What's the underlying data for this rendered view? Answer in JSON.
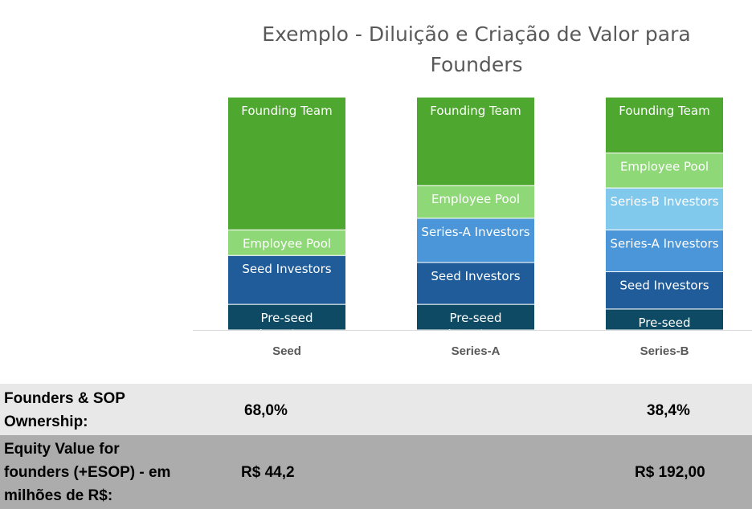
{
  "chart_data": {
    "type": "bar",
    "stacked": true,
    "percent_stacked": true,
    "title": "Exemplo - Diluição e Criação de Valor para Founders",
    "title_lines": [
      "Exemplo - Diluição e Criação de Valor para",
      "Founders"
    ],
    "categories": [
      "Seed",
      "Series-A",
      "Series-B"
    ],
    "series": [
      {
        "name": "Pre-seed Investors",
        "values": [
          11,
          11,
          9
        ],
        "color": "#0e4a63"
      },
      {
        "name": "Seed Investors",
        "values": [
          21,
          18,
          16
        ],
        "color": "#1f5c99"
      },
      {
        "name": "Series-A Investors",
        "values": [
          0,
          19,
          18
        ],
        "color": "#4b96d8"
      },
      {
        "name": "Series-B Investors",
        "values": [
          0,
          0,
          18
        ],
        "color": "#80c8ec"
      },
      {
        "name": "Employee Pool",
        "values": [
          11,
          14,
          15
        ],
        "color": "#8fd878"
      },
      {
        "name": "Founding Team",
        "values": [
          57,
          38,
          24
        ],
        "color": "#4ea72e"
      }
    ],
    "segment_labels": {
      "Pre-seed Investors": "Pre-seed Investors",
      "Seed Investors": "Seed Investors",
      "Series-A Investors": "Series-A Investors",
      "Series-B Investors": "Series-B Investors",
      "Employee Pool": "Employee Pool",
      "Founding Team": "Founding Team"
    },
    "ylim": [
      0,
      100
    ],
    "legend": "none",
    "grid": false
  },
  "table": {
    "rows": [
      {
        "label_lines": [
          "Founders & SOP",
          "Ownership:"
        ],
        "seed": "68,0%",
        "series_b": "38,4%"
      },
      {
        "label_lines": [
          "Equity Value for",
          "founders (+ESOP) - em",
          "milhões de R$:"
        ],
        "seed": "R$ 44,2",
        "series_b": "R$ 192,00"
      }
    ]
  }
}
